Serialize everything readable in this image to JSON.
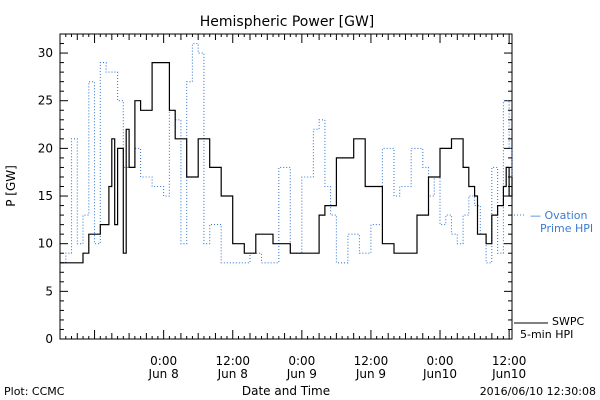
{
  "chart_data": {
    "type": "line",
    "title": "Hemispheric Power [GW]",
    "xlabel": "Date and Time",
    "ylabel": "P [GW]",
    "xlim": [
      "2016-06-07 06:00",
      "2016-06-10 12:30"
    ],
    "ylim": [
      0,
      32
    ],
    "yticks": [
      0,
      5,
      10,
      15,
      20,
      25,
      30
    ],
    "xticks": [
      {
        "t": "2016-06-08 00:00",
        "label1": "0:00",
        "label2": "Jun 8"
      },
      {
        "t": "2016-06-08 12:00",
        "label1": "12:00",
        "label2": "Jun 8"
      },
      {
        "t": "2016-06-09 00:00",
        "label1": "0:00",
        "label2": "Jun 9"
      },
      {
        "t": "2016-06-09 12:00",
        "label1": "12:00",
        "label2": "Jun 9"
      },
      {
        "t": "2016-06-10 00:00",
        "label1": "0:00",
        "label2": "Jun10"
      },
      {
        "t": "2016-06-10 12:00",
        "label1": "12:00",
        "label2": "Jun10"
      }
    ],
    "grid": false,
    "legend_position": "right",
    "series": [
      {
        "name": "SWPC 5-min HPI",
        "style": "solid",
        "color": "#000000",
        "points": [
          [
            "2016-06-07 06:00",
            8
          ],
          [
            "2016-06-07 08:00",
            8
          ],
          [
            "2016-06-07 10:00",
            9
          ],
          [
            "2016-06-07 11:00",
            11
          ],
          [
            "2016-06-07 13:00",
            12
          ],
          [
            "2016-06-07 14:30",
            16
          ],
          [
            "2016-06-07 15:00",
            21
          ],
          [
            "2016-06-07 15:30",
            12
          ],
          [
            "2016-06-07 16:00",
            20
          ],
          [
            "2016-06-07 17:00",
            9
          ],
          [
            "2016-06-07 17:30",
            22
          ],
          [
            "2016-06-07 18:00",
            18
          ],
          [
            "2016-06-07 19:00",
            25
          ],
          [
            "2016-06-07 20:00",
            24
          ],
          [
            "2016-06-07 22:00",
            29
          ],
          [
            "2016-06-08 01:00",
            24
          ],
          [
            "2016-06-08 02:00",
            21
          ],
          [
            "2016-06-08 04:00",
            17
          ],
          [
            "2016-06-08 06:00",
            21
          ],
          [
            "2016-06-08 08:00",
            18
          ],
          [
            "2016-06-08 10:00",
            15
          ],
          [
            "2016-06-08 12:00",
            10
          ],
          [
            "2016-06-08 14:00",
            9
          ],
          [
            "2016-06-08 16:00",
            11
          ],
          [
            "2016-06-08 19:00",
            10
          ],
          [
            "2016-06-08 22:00",
            9
          ],
          [
            "2016-06-09 00:00",
            9
          ],
          [
            "2016-06-09 02:00",
            9
          ],
          [
            "2016-06-09 03:00",
            13
          ],
          [
            "2016-06-09 04:00",
            14
          ],
          [
            "2016-06-09 06:00",
            19
          ],
          [
            "2016-06-09 09:00",
            21
          ],
          [
            "2016-06-09 11:00",
            16
          ],
          [
            "2016-06-09 14:00",
            10
          ],
          [
            "2016-06-09 16:00",
            9
          ],
          [
            "2016-06-09 17:00",
            9
          ],
          [
            "2016-06-09 20:00",
            13
          ],
          [
            "2016-06-09 22:00",
            17
          ],
          [
            "2016-06-10 00:00",
            20
          ],
          [
            "2016-06-10 02:00",
            21
          ],
          [
            "2016-06-10 04:00",
            18
          ],
          [
            "2016-06-10 05:00",
            16
          ],
          [
            "2016-06-10 06:00",
            15
          ],
          [
            "2016-06-10 06:30",
            11
          ],
          [
            "2016-06-10 07:00",
            11
          ],
          [
            "2016-06-10 08:00",
            10
          ],
          [
            "2016-06-10 09:00",
            13
          ],
          [
            "2016-06-10 10:00",
            14
          ],
          [
            "2016-06-10 11:00",
            16
          ],
          [
            "2016-06-10 11:30",
            18
          ],
          [
            "2016-06-10 12:00",
            15
          ],
          [
            "2016-06-10 12:30",
            17
          ]
        ]
      },
      {
        "name": "Ovation Prime HPI",
        "style": "dotted",
        "color": "#3a7bd5",
        "points": [
          [
            "2016-06-07 06:00",
            8
          ],
          [
            "2016-06-07 07:00",
            9
          ],
          [
            "2016-06-07 08:00",
            21
          ],
          [
            "2016-06-07 09:00",
            10
          ],
          [
            "2016-06-07 10:00",
            13
          ],
          [
            "2016-06-07 11:00",
            27
          ],
          [
            "2016-06-07 12:00",
            10
          ],
          [
            "2016-06-07 13:00",
            29
          ],
          [
            "2016-06-07 14:00",
            28
          ],
          [
            "2016-06-07 15:00",
            28
          ],
          [
            "2016-06-07 16:00",
            25
          ],
          [
            "2016-06-07 17:00",
            18
          ],
          [
            "2016-06-07 19:00",
            20
          ],
          [
            "2016-06-07 20:00",
            17
          ],
          [
            "2016-06-07 22:00",
            16
          ],
          [
            "2016-06-08 00:00",
            15
          ],
          [
            "2016-06-08 01:00",
            24
          ],
          [
            "2016-06-08 02:00",
            23
          ],
          [
            "2016-06-08 03:00",
            10
          ],
          [
            "2016-06-08 04:00",
            27
          ],
          [
            "2016-06-08 05:00",
            31
          ],
          [
            "2016-06-08 06:00",
            30
          ],
          [
            "2016-06-08 07:00",
            10
          ],
          [
            "2016-06-08 08:00",
            12
          ],
          [
            "2016-06-08 10:00",
            8
          ],
          [
            "2016-06-08 13:00",
            8
          ],
          [
            "2016-06-08 15:00",
            9
          ],
          [
            "2016-06-08 17:00",
            8
          ],
          [
            "2016-06-08 20:00",
            18
          ],
          [
            "2016-06-08 22:00",
            9
          ],
          [
            "2016-06-09 00:00",
            17
          ],
          [
            "2016-06-09 02:00",
            22
          ],
          [
            "2016-06-09 03:00",
            23
          ],
          [
            "2016-06-09 04:00",
            16
          ],
          [
            "2016-06-09 05:00",
            13
          ],
          [
            "2016-06-09 06:00",
            8
          ],
          [
            "2016-06-09 08:00",
            11
          ],
          [
            "2016-06-09 10:00",
            9
          ],
          [
            "2016-06-09 12:00",
            12
          ],
          [
            "2016-06-09 14:00",
            20
          ],
          [
            "2016-06-09 16:00",
            15
          ],
          [
            "2016-06-09 17:00",
            16
          ],
          [
            "2016-06-09 19:00",
            20
          ],
          [
            "2016-06-09 21:00",
            18
          ],
          [
            "2016-06-09 22:00",
            15
          ],
          [
            "2016-06-09 23:00",
            17
          ],
          [
            "2016-06-10 00:00",
            12
          ],
          [
            "2016-06-10 01:00",
            13
          ],
          [
            "2016-06-10 02:00",
            11
          ],
          [
            "2016-06-10 03:00",
            10
          ],
          [
            "2016-06-10 04:00",
            13
          ],
          [
            "2016-06-10 05:00",
            15
          ],
          [
            "2016-06-10 06:00",
            14
          ],
          [
            "2016-06-10 07:00",
            11
          ],
          [
            "2016-06-10 08:00",
            8
          ],
          [
            "2016-06-10 09:00",
            18
          ],
          [
            "2016-06-10 10:00",
            9
          ],
          [
            "2016-06-10 11:00",
            25
          ],
          [
            "2016-06-10 12:00",
            20
          ],
          [
            "2016-06-10 12:30",
            15
          ]
        ]
      }
    ],
    "legend": [
      {
        "line1": "— Ovation",
        "line2": "Prime HPI",
        "color": "#3a7bd5"
      },
      {
        "line1": "SWPC",
        "line2": "5-min HPI",
        "color": "#000000"
      }
    ]
  },
  "footer": {
    "left": "Plot: CCMC",
    "right": "2016/06/10 12:30:08"
  }
}
